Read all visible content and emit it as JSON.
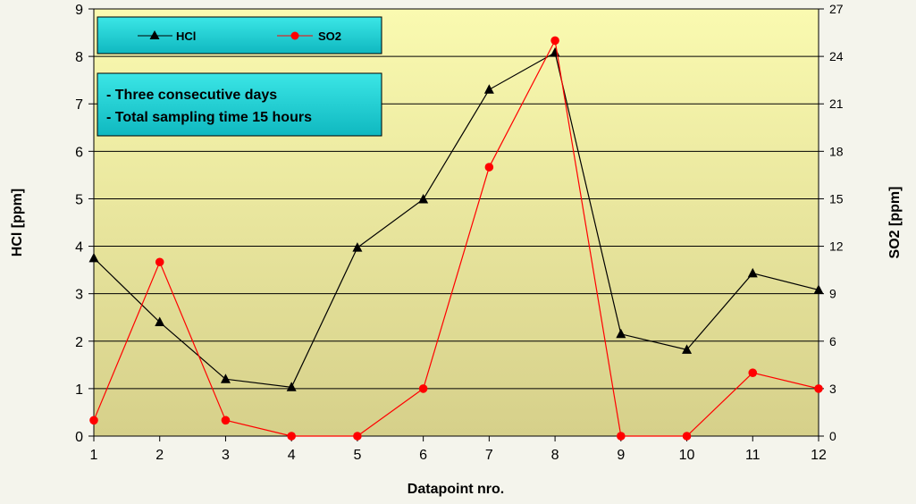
{
  "chart_data": {
    "type": "line",
    "xlabel": "Datapoint nro.",
    "ylabel_left": "HCl [ppm]",
    "ylabel_right": "SO2 [ppm]",
    "x": [
      1,
      2,
      3,
      4,
      5,
      6,
      7,
      8,
      9,
      10,
      11,
      12
    ],
    "ylim_left": [
      0,
      9
    ],
    "yticks_left": [
      0,
      1,
      2,
      3,
      4,
      5,
      6,
      7,
      8,
      9
    ],
    "ylim_right": [
      0,
      27
    ],
    "yticks_right": [
      0,
      3,
      6,
      9,
      12,
      15,
      18,
      21,
      24,
      27
    ],
    "grid": true,
    "legend_position": "top-left",
    "series": [
      {
        "name": "HCl",
        "axis": "left",
        "color": "#000000",
        "marker": "triangle",
        "values": [
          3.75,
          2.4,
          1.2,
          1.03,
          3.97,
          4.99,
          7.3,
          8.08,
          2.15,
          1.82,
          3.43,
          3.08
        ]
      },
      {
        "name": "SO2",
        "axis": "right",
        "color": "#ff0000",
        "marker": "circle",
        "values": [
          1,
          11,
          1,
          0,
          0,
          3,
          17,
          25,
          0,
          0,
          4,
          3
        ]
      }
    ],
    "annotation": {
      "lines": [
        "- Three consecutive days",
        "- Total sampling time 15 hours"
      ]
    },
    "colors": {
      "plot_bg_top": "#fafab0",
      "plot_bg_bottom": "#d6d08a",
      "box_fill": "#22d8da",
      "box_fill_dark": "#0aa9b4"
    }
  }
}
